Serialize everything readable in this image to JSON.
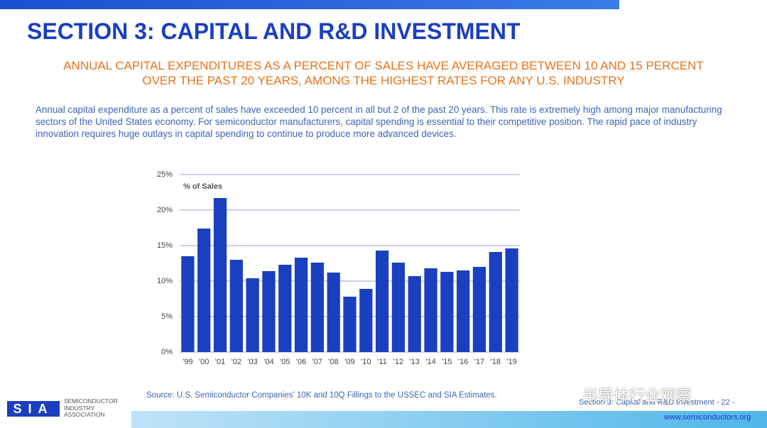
{
  "header": {
    "title": "SECTION 3: CAPITAL AND R&D INVESTMENT",
    "subtitle": [
      "ANNUAL CAPITAL EXPENDITURES AS A PERCENT OF SALES HAVE AVERAGED BETWEEN 10 AND 15 PERCENT",
      "OVER THE PAST 20 YEARS, AMONG THE HIGHEST RATES FOR ANY U.S. INDUSTRY"
    ]
  },
  "body": {
    "text": "Annual capital expenditure as a percent of sales have exceeded 10 percent in all but 2 of the past 20 years. This rate is extremely high among major manufacturing sectors of the United States economy. For semiconductor manufacturers, capital spending is essential to their competitive position. The rapid pace of industry innovation requires huge outlays in capital spending to continue to produce more advanced devices."
  },
  "chart_data": {
    "type": "bar",
    "ylabel": "% of Sales",
    "categories": [
      "'99",
      "'00",
      "'01",
      "'02",
      "'03",
      "'04",
      "'05",
      "'06",
      "'07",
      "'08",
      "'09",
      "'10",
      "'11",
      "'12",
      "'13",
      "'14",
      "'15",
      "'16",
      "'17",
      "'18",
      "'19"
    ],
    "values": [
      13.5,
      17.4,
      21.7,
      13.0,
      10.4,
      11.4,
      12.3,
      13.3,
      12.6,
      11.2,
      7.8,
      8.9,
      14.3,
      12.6,
      10.7,
      11.8,
      11.3,
      11.5,
      12.0,
      14.1,
      14.6
    ],
    "color": "#1a3fbf",
    "ylim": [
      0,
      25
    ],
    "yticks": [
      {
        "value": 0,
        "label": "0%"
      },
      {
        "value": 5,
        "label": "5%"
      },
      {
        "value": 10,
        "label": "10%"
      },
      {
        "value": 15,
        "label": "15%"
      },
      {
        "value": 20,
        "label": "20%"
      },
      {
        "value": 25,
        "label": "25%"
      }
    ],
    "grid": true,
    "source": "Source: U.S. Semiconductor Companies' 10K and 10Q Fillings to the USSEC and SIA Estimates."
  },
  "footer": {
    "logo": "SIA",
    "org": [
      "SEMICONDUCTOR",
      "INDUSTRY",
      "ASSOCIATION"
    ],
    "section": "Section 3: Capital and R&D Investment - 22 -",
    "url": "www.semiconductors.org",
    "watermark": "半导体行业观察"
  }
}
